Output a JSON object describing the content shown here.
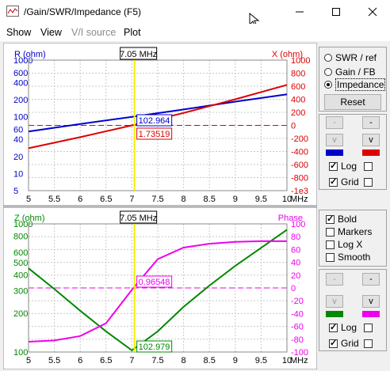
{
  "window": {
    "title": "/Gain/SWR/Impedance (F5)"
  },
  "menu": [
    {
      "label": "Show",
      "enabled": true
    },
    {
      "label": "View",
      "enabled": true
    },
    {
      "label": "V/I source",
      "enabled": false
    },
    {
      "label": "Plot",
      "enabled": true
    }
  ],
  "top_plot": {
    "left_axis_label": "R (ohm)",
    "right_axis_label": "X (ohm)",
    "left_ticks": [
      "1000",
      "600",
      "400",
      "200",
      "100",
      "60",
      "40",
      "20",
      "10",
      "5"
    ],
    "right_ticks": [
      "1000",
      "800",
      "600",
      "400",
      "200",
      "0",
      "-200",
      "-400",
      "-600",
      "-800",
      "-1e3"
    ],
    "cursor_label": "7.05 MHz",
    "r_readout": "102.964",
    "x_readout": "1.73519"
  },
  "bottom_plot": {
    "left_axis_label": "Z (ohm)",
    "right_axis_label": "Phase",
    "left_ticks": [
      "1000",
      "800",
      "600",
      "500",
      "400",
      "300",
      "200",
      "100"
    ],
    "right_ticks": [
      "100",
      "80",
      "60",
      "40",
      "20",
      "0",
      "-20",
      "-40",
      "-60",
      "-80",
      "-100"
    ],
    "cursor_label": "7.05 MHz",
    "phase_readout": "0.96548",
    "z_readout": "102.979"
  },
  "x_ticks": [
    "5",
    "5.5",
    "6",
    "6.5",
    "7",
    "7.5",
    "8",
    "8.5",
    "9",
    "9.5",
    "10",
    "MHz"
  ],
  "chart_data": [
    {
      "type": "line",
      "x_unit": "MHz",
      "xlim": [
        5,
        10
      ],
      "cursor_x": 7.05,
      "series": [
        {
          "name": "R (ohm)",
          "axis": "left",
          "scale": "log",
          "color": "#0000cc",
          "x": [
            5,
            6,
            7,
            8,
            9,
            10
          ],
          "y": [
            55,
            75,
            100,
            135,
            185,
            250
          ]
        },
        {
          "name": "X (ohm)",
          "axis": "right",
          "scale": "linear",
          "color": "#dd0000",
          "x": [
            5,
            6,
            7,
            8,
            9,
            10
          ],
          "y": [
            -350,
            -180,
            0,
            190,
            400,
            620
          ]
        }
      ],
      "left_ylim": [
        5,
        1000
      ],
      "right_ylim": [
        -1000,
        1000
      ],
      "grid": true
    },
    {
      "type": "line",
      "x_unit": "MHz",
      "xlim": [
        5,
        10
      ],
      "cursor_x": 7.05,
      "series": [
        {
          "name": "Z (ohm)",
          "axis": "left",
          "scale": "log",
          "color": "#008800",
          "x": [
            5,
            5.5,
            6,
            6.5,
            7,
            7.5,
            8,
            8.5,
            9,
            9.5,
            10
          ],
          "y": [
            450,
            310,
            210,
            145,
            103,
            145,
            225,
            330,
            470,
            650,
            900
          ]
        },
        {
          "name": "Phase",
          "axis": "right",
          "scale": "linear",
          "color": "#ee00ee",
          "x": [
            5,
            5.5,
            6,
            6.5,
            7,
            7.5,
            8,
            8.5,
            9,
            9.5,
            10
          ],
          "y": [
            -84,
            -82,
            -75,
            -55,
            -3,
            45,
            63,
            69,
            72,
            73,
            73
          ]
        }
      ],
      "left_ylim": [
        100,
        1000
      ],
      "right_ylim": [
        -100,
        100
      ],
      "grid": true
    }
  ],
  "side_top": {
    "modes": [
      {
        "label": "SWR / ref",
        "selected": false
      },
      {
        "label": "Gain / FB",
        "selected": false
      },
      {
        "label": "Impedance",
        "selected": true
      }
    ],
    "reset_label": "Reset",
    "log_label": "Log",
    "grid_label": "Grid",
    "log_checked": true,
    "grid_checked": true,
    "color1": "#0000cc",
    "color2": "#dd0000"
  },
  "side_bottom": {
    "options": [
      {
        "label": "Bold",
        "checked": true
      },
      {
        "label": "Markers",
        "checked": false
      },
      {
        "label": "Log X",
        "checked": false
      },
      {
        "label": "Smooth",
        "checked": false
      }
    ],
    "log_label": "Log",
    "grid_label": "Grid",
    "log_checked": true,
    "grid_checked": true,
    "color1": "#008800",
    "color2": "#ee00ee"
  }
}
